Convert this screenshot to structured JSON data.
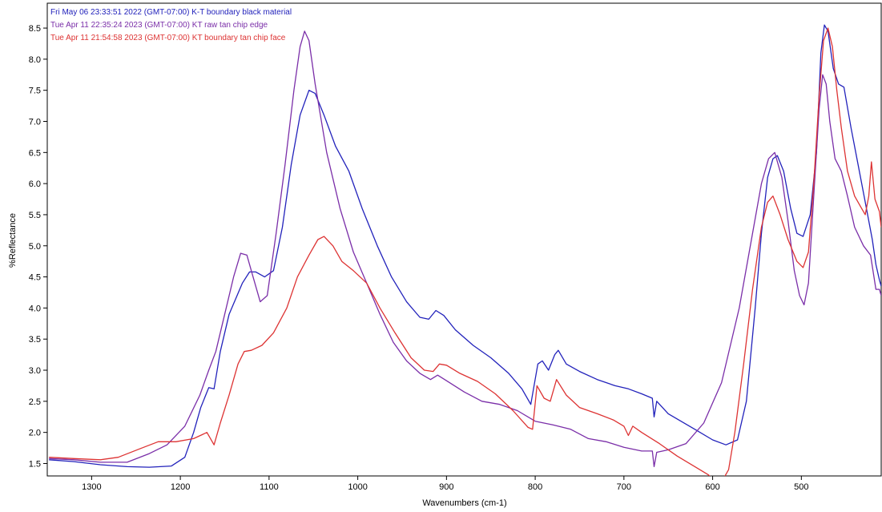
{
  "chart_data": {
    "type": "line",
    "xlabel": "Wavenumbers (cm-1)",
    "ylabel": "%Reflectance",
    "xlim": [
      1350,
      410
    ],
    "ylim": [
      1.3,
      8.9
    ],
    "x_reversed": true,
    "grid": false,
    "legend_position": "top-left",
    "x_ticks": [
      1300,
      1200,
      1100,
      1000,
      900,
      800,
      700,
      600,
      500
    ],
    "x_tick_labels": [
      "1300",
      "1200",
      "1100",
      "1000",
      "900",
      "800",
      "700",
      "600",
      "500"
    ],
    "y_ticks": [
      1.5,
      2.0,
      2.5,
      3.0,
      3.5,
      4.0,
      4.5,
      5.0,
      5.5,
      6.0,
      6.5,
      7.0,
      7.5,
      8.0,
      8.5
    ],
    "y_tick_labels": [
      "1.5",
      "2.0",
      "2.5",
      "3.0",
      "3.5",
      "4.0",
      "4.5",
      "5.0",
      "5.5",
      "6.0",
      "6.5",
      "7.0",
      "7.5",
      "8.0",
      "8.5"
    ],
    "series": [
      {
        "name": "Fri May 06 23:33:51 2022 (GMT-07:00) K-T boundary black material",
        "color": "#2222bb",
        "points": [
          [
            1348,
            1.56
          ],
          [
            1320,
            1.53
          ],
          [
            1290,
            1.48
          ],
          [
            1260,
            1.45
          ],
          [
            1235,
            1.44
          ],
          [
            1210,
            1.46
          ],
          [
            1195,
            1.6
          ],
          [
            1185,
            2.0
          ],
          [
            1177,
            2.4
          ],
          [
            1168,
            2.72
          ],
          [
            1162,
            2.7
          ],
          [
            1155,
            3.3
          ],
          [
            1145,
            3.9
          ],
          [
            1130,
            4.4
          ],
          [
            1122,
            4.58
          ],
          [
            1115,
            4.58
          ],
          [
            1105,
            4.5
          ],
          [
            1095,
            4.6
          ],
          [
            1085,
            5.3
          ],
          [
            1075,
            6.3
          ],
          [
            1065,
            7.1
          ],
          [
            1055,
            7.5
          ],
          [
            1048,
            7.45
          ],
          [
            1038,
            7.1
          ],
          [
            1025,
            6.6
          ],
          [
            1010,
            6.2
          ],
          [
            995,
            5.6
          ],
          [
            978,
            5.0
          ],
          [
            962,
            4.5
          ],
          [
            945,
            4.1
          ],
          [
            930,
            3.85
          ],
          [
            920,
            3.82
          ],
          [
            912,
            3.96
          ],
          [
            903,
            3.88
          ],
          [
            890,
            3.65
          ],
          [
            870,
            3.4
          ],
          [
            850,
            3.2
          ],
          [
            830,
            2.95
          ],
          [
            815,
            2.7
          ],
          [
            805,
            2.45
          ],
          [
            797,
            3.1
          ],
          [
            792,
            3.15
          ],
          [
            785,
            3.0
          ],
          [
            778,
            3.25
          ],
          [
            774,
            3.32
          ],
          [
            765,
            3.1
          ],
          [
            750,
            2.98
          ],
          [
            730,
            2.85
          ],
          [
            710,
            2.75
          ],
          [
            695,
            2.7
          ],
          [
            680,
            2.62
          ],
          [
            668,
            2.55
          ],
          [
            666,
            2.25
          ],
          [
            663,
            2.5
          ],
          [
            650,
            2.3
          ],
          [
            620,
            2.05
          ],
          [
            600,
            1.88
          ],
          [
            585,
            1.8
          ],
          [
            572,
            1.88
          ],
          [
            562,
            2.5
          ],
          [
            552,
            4.0
          ],
          [
            545,
            5.2
          ],
          [
            538,
            6.1
          ],
          [
            532,
            6.4
          ],
          [
            527,
            6.45
          ],
          [
            520,
            6.2
          ],
          [
            512,
            5.6
          ],
          [
            505,
            5.2
          ],
          [
            498,
            5.15
          ],
          [
            490,
            5.5
          ],
          [
            483,
            6.5
          ],
          [
            478,
            8.1
          ],
          [
            474,
            8.55
          ],
          [
            470,
            8.45
          ],
          [
            464,
            7.85
          ],
          [
            458,
            7.6
          ],
          [
            452,
            7.55
          ],
          [
            444,
            6.9
          ],
          [
            436,
            6.3
          ],
          [
            428,
            5.7
          ],
          [
            420,
            5.1
          ],
          [
            416,
            4.7
          ],
          [
            412,
            4.45
          ],
          [
            410,
            4.35
          ]
        ]
      },
      {
        "name": "Tue Apr 11 22:35:24 2023 (GMT-07:00) KT raw tan chip edge",
        "color": "#7a2ea8",
        "points": [
          [
            1348,
            1.58
          ],
          [
            1320,
            1.56
          ],
          [
            1290,
            1.52
          ],
          [
            1260,
            1.52
          ],
          [
            1235,
            1.66
          ],
          [
            1215,
            1.8
          ],
          [
            1195,
            2.1
          ],
          [
            1178,
            2.6
          ],
          [
            1168,
            3.0
          ],
          [
            1160,
            3.3
          ],
          [
            1150,
            3.9
          ],
          [
            1140,
            4.5
          ],
          [
            1132,
            4.88
          ],
          [
            1125,
            4.85
          ],
          [
            1118,
            4.5
          ],
          [
            1110,
            4.1
          ],
          [
            1102,
            4.2
          ],
          [
            1092,
            5.2
          ],
          [
            1082,
            6.3
          ],
          [
            1072,
            7.5
          ],
          [
            1065,
            8.2
          ],
          [
            1060,
            8.45
          ],
          [
            1055,
            8.3
          ],
          [
            1048,
            7.6
          ],
          [
            1035,
            6.5
          ],
          [
            1020,
            5.6
          ],
          [
            1005,
            4.9
          ],
          [
            990,
            4.4
          ],
          [
            975,
            3.9
          ],
          [
            960,
            3.45
          ],
          [
            945,
            3.15
          ],
          [
            930,
            2.95
          ],
          [
            918,
            2.85
          ],
          [
            910,
            2.92
          ],
          [
            902,
            2.85
          ],
          [
            880,
            2.65
          ],
          [
            860,
            2.5
          ],
          [
            840,
            2.45
          ],
          [
            820,
            2.35
          ],
          [
            800,
            2.18
          ],
          [
            780,
            2.12
          ],
          [
            760,
            2.05
          ],
          [
            740,
            1.9
          ],
          [
            720,
            1.85
          ],
          [
            700,
            1.76
          ],
          [
            680,
            1.7
          ],
          [
            668,
            1.7
          ],
          [
            666,
            1.45
          ],
          [
            663,
            1.68
          ],
          [
            650,
            1.72
          ],
          [
            630,
            1.82
          ],
          [
            610,
            2.15
          ],
          [
            590,
            2.8
          ],
          [
            570,
            4.0
          ],
          [
            555,
            5.2
          ],
          [
            545,
            6.0
          ],
          [
            537,
            6.4
          ],
          [
            530,
            6.5
          ],
          [
            522,
            6.1
          ],
          [
            515,
            5.4
          ],
          [
            508,
            4.6
          ],
          [
            502,
            4.2
          ],
          [
            497,
            4.05
          ],
          [
            492,
            4.4
          ],
          [
            486,
            5.8
          ],
          [
            480,
            7.2
          ],
          [
            476,
            7.75
          ],
          [
            472,
            7.6
          ],
          [
            468,
            7.0
          ],
          [
            462,
            6.4
          ],
          [
            455,
            6.2
          ],
          [
            448,
            5.8
          ],
          [
            440,
            5.3
          ],
          [
            430,
            5.0
          ],
          [
            422,
            4.85
          ],
          [
            416,
            4.3
          ],
          [
            412,
            4.3
          ],
          [
            410,
            4.2
          ]
        ]
      },
      {
        "name": "Tue Apr 11 21:54:58 2023 (GMT-07:00) KT boundary tan chip face",
        "color": "#dd3333",
        "points": [
          [
            1348,
            1.6
          ],
          [
            1320,
            1.58
          ],
          [
            1290,
            1.56
          ],
          [
            1270,
            1.6
          ],
          [
            1245,
            1.74
          ],
          [
            1225,
            1.85
          ],
          [
            1205,
            1.85
          ],
          [
            1185,
            1.9
          ],
          [
            1170,
            2.0
          ],
          [
            1162,
            1.8
          ],
          [
            1155,
            2.15
          ],
          [
            1145,
            2.6
          ],
          [
            1135,
            3.1
          ],
          [
            1128,
            3.3
          ],
          [
            1120,
            3.32
          ],
          [
            1108,
            3.4
          ],
          [
            1095,
            3.6
          ],
          [
            1080,
            4.0
          ],
          [
            1068,
            4.5
          ],
          [
            1055,
            4.85
          ],
          [
            1045,
            5.1
          ],
          [
            1038,
            5.15
          ],
          [
            1028,
            5.0
          ],
          [
            1018,
            4.75
          ],
          [
            1005,
            4.6
          ],
          [
            990,
            4.4
          ],
          [
            975,
            4.0
          ],
          [
            958,
            3.6
          ],
          [
            940,
            3.2
          ],
          [
            925,
            3.0
          ],
          [
            915,
            2.98
          ],
          [
            908,
            3.1
          ],
          [
            900,
            3.08
          ],
          [
            885,
            2.95
          ],
          [
            865,
            2.82
          ],
          [
            845,
            2.62
          ],
          [
            825,
            2.35
          ],
          [
            808,
            2.08
          ],
          [
            803,
            2.05
          ],
          [
            798,
            2.75
          ],
          [
            790,
            2.55
          ],
          [
            783,
            2.5
          ],
          [
            776,
            2.85
          ],
          [
            765,
            2.6
          ],
          [
            750,
            2.4
          ],
          [
            730,
            2.3
          ],
          [
            712,
            2.2
          ],
          [
            700,
            2.1
          ],
          [
            695,
            1.95
          ],
          [
            690,
            2.1
          ],
          [
            680,
            2.0
          ],
          [
            660,
            1.82
          ],
          [
            640,
            1.62
          ],
          [
            620,
            1.45
          ],
          [
            605,
            1.32
          ],
          [
            592,
            1.15
          ],
          [
            582,
            1.4
          ],
          [
            575,
            2.0
          ],
          [
            565,
            3.1
          ],
          [
            555,
            4.3
          ],
          [
            545,
            5.3
          ],
          [
            538,
            5.7
          ],
          [
            532,
            5.8
          ],
          [
            524,
            5.5
          ],
          [
            515,
            5.1
          ],
          [
            505,
            4.75
          ],
          [
            498,
            4.65
          ],
          [
            492,
            4.9
          ],
          [
            486,
            6.0
          ],
          [
            480,
            7.4
          ],
          [
            475,
            8.3
          ],
          [
            470,
            8.5
          ],
          [
            465,
            8.2
          ],
          [
            460,
            7.5
          ],
          [
            455,
            6.9
          ],
          [
            448,
            6.2
          ],
          [
            440,
            5.8
          ],
          [
            432,
            5.6
          ],
          [
            428,
            5.5
          ],
          [
            424,
            5.8
          ],
          [
            421,
            6.35
          ],
          [
            417,
            5.75
          ],
          [
            412,
            5.55
          ],
          [
            410,
            5.3
          ]
        ]
      }
    ]
  }
}
